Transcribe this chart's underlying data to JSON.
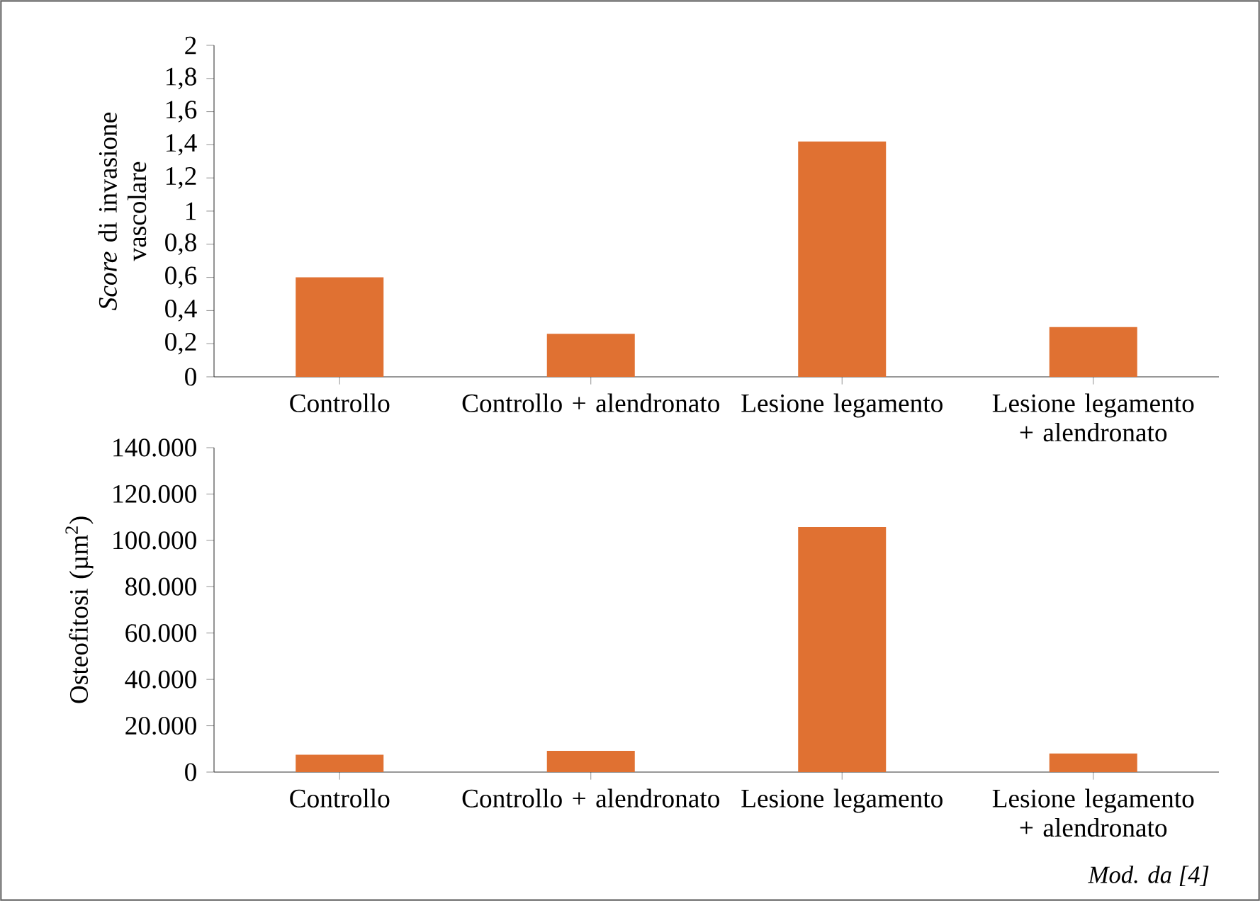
{
  "chart_data": [
    {
      "type": "bar",
      "ylabel": "*Score* di invasione vascolare",
      "categories": [
        "Controllo",
        "Controllo + alendronato",
        "Lesione legamento",
        "Lesione legamento + alendronato"
      ],
      "values": [
        0.6,
        0.26,
        1.42,
        0.3
      ],
      "color": "#e07132",
      "ylim": [
        0,
        2
      ],
      "yticks": [
        0,
        {
          "value": 0.2,
          "label": "0,2"
        },
        {
          "value": 0.4,
          "label": "0,4"
        },
        {
          "value": 0.6,
          "label": "0,6"
        },
        {
          "value": 0.8,
          "label": "0,8"
        },
        1,
        {
          "value": 1.2,
          "label": "1,2"
        },
        {
          "value": 1.4,
          "label": "1,4"
        },
        {
          "value": 1.6,
          "label": "1,6"
        },
        {
          "value": 1.8,
          "label": "1,8"
        },
        2
      ]
    },
    {
      "type": "bar",
      "ylabel": "Osteofitosi (µm$^{2}$)",
      "categories": [
        "Controllo",
        "Controllo + alendronato",
        "Lesione legamento",
        "Lesione legamento + alendronato"
      ],
      "values": [
        7500,
        9200,
        105800,
        8000
      ],
      "color": "#e07132",
      "ylim": [
        0,
        140000
      ],
      "yticks": [
        0,
        {
          "value": 20000,
          "label": "20.000"
        },
        {
          "value": 40000,
          "label": "40.000"
        },
        {
          "value": 60000,
          "label": "60.000"
        },
        {
          "value": 80000,
          "label": "80.000"
        },
        {
          "value": 100000,
          "label": "100.000"
        },
        {
          "value": 120000,
          "label": "120.000"
        },
        {
          "value": 140000,
          "label": "140.000"
        }
      ],
      "annotations": [
        "Mod. da [4]"
      ]
    }
  ]
}
